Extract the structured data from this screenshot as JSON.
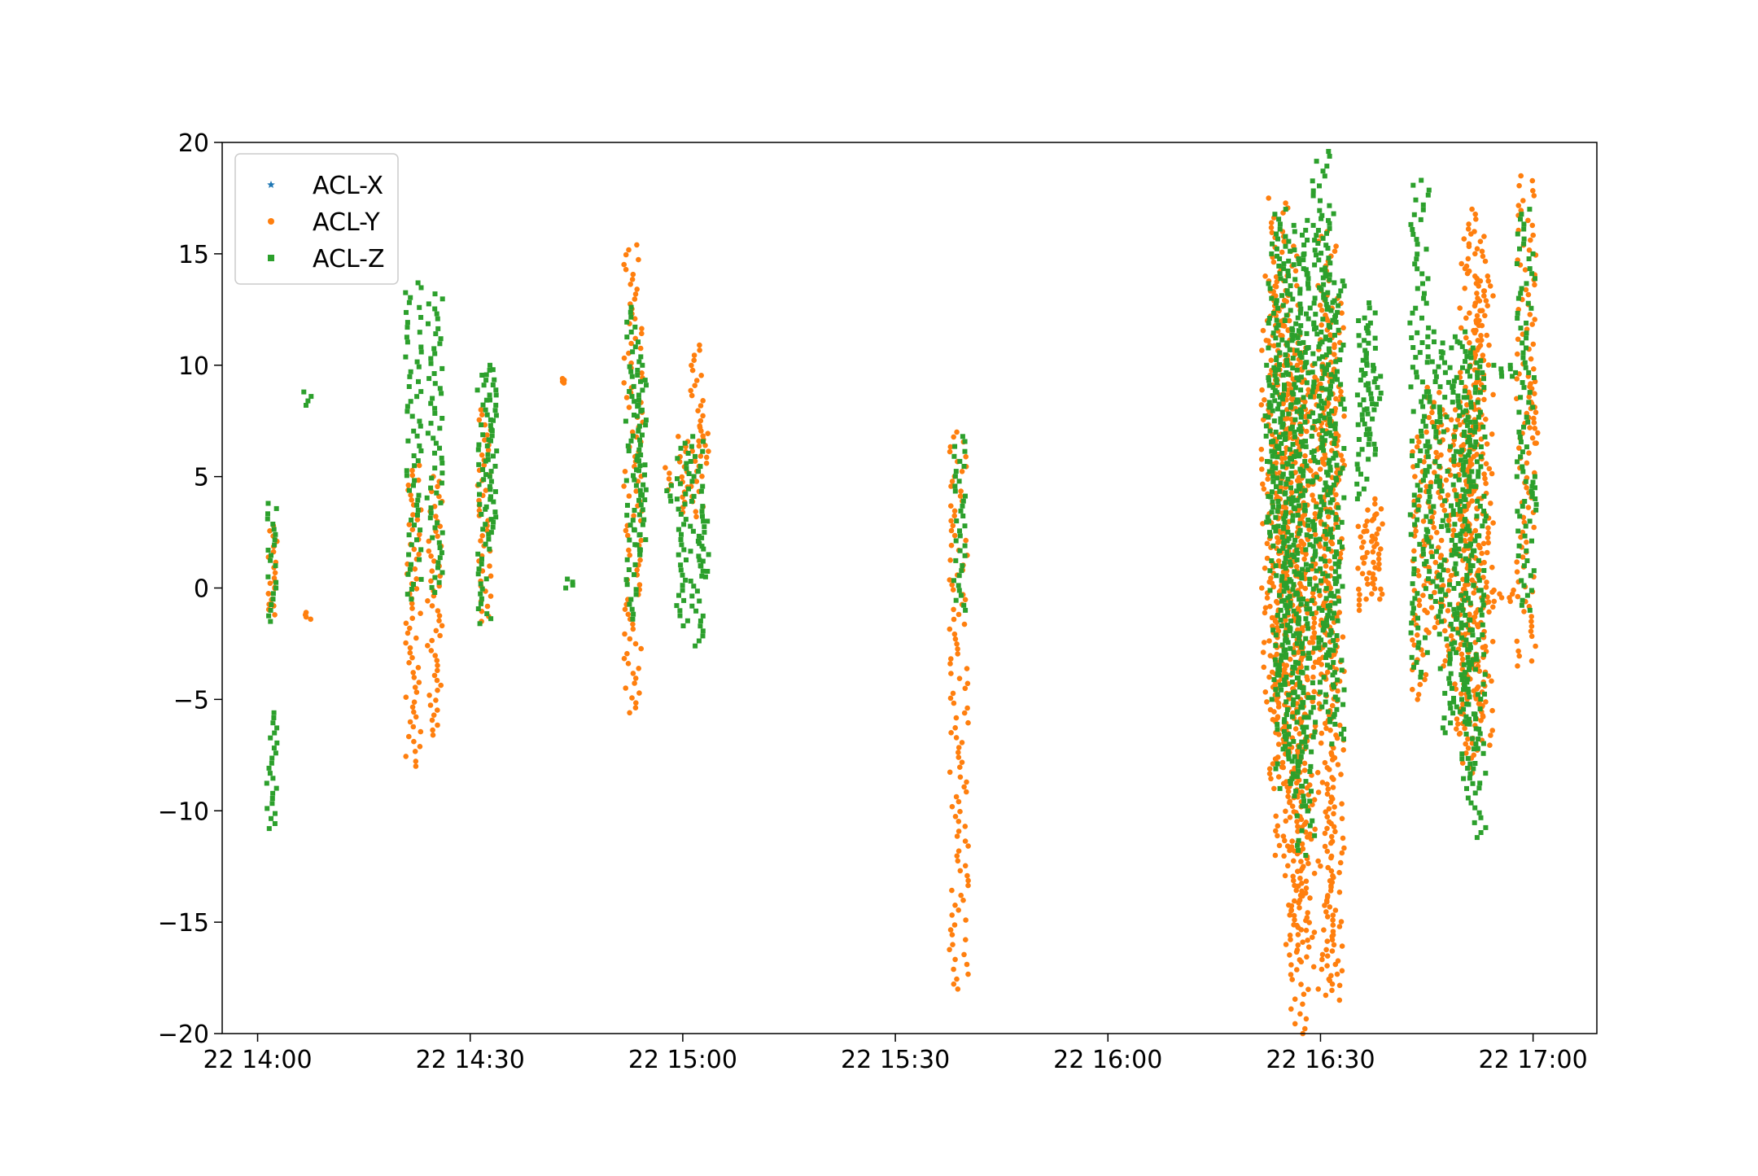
{
  "chart_data": {
    "type": "scatter",
    "title": "",
    "xlabel": "",
    "ylabel": "",
    "ylim": [
      -20,
      20
    ],
    "xlim": [
      "22 13:55",
      "22 17:09"
    ],
    "x_ticks": [
      "22 14:00",
      "22 14:30",
      "22 15:00",
      "22 15:30",
      "22 16:00",
      "22 16:30",
      "22 17:00"
    ],
    "y_ticks": [
      -20,
      -15,
      -10,
      -5,
      0,
      5,
      10,
      15,
      20
    ],
    "y_tick_labels": [
      "−20",
      "−15",
      "−10",
      "−5",
      "0",
      "5",
      "10",
      "15",
      "20"
    ],
    "grid": false,
    "legend_position": "top-left",
    "series": [
      {
        "name": "ACL-X",
        "marker": "star",
        "color": "#1f77b4",
        "points": []
      },
      {
        "name": "ACL-Y",
        "marker": "circle",
        "color": "#ff7f0e",
        "segments": [
          [
            "22 14:02",
            -1.2,
            2.8
          ],
          [
            "22 14:02",
            -0.8,
            0.3
          ],
          [
            "22 14:07",
            -1.4,
            -1.1
          ],
          [
            "22 14:22",
            -8.0,
            5.5
          ],
          [
            "22 14:25",
            -6.6,
            5.0
          ],
          [
            "22 14:32",
            -1.5,
            8.0
          ],
          [
            "22 14:43",
            9.2,
            9.4
          ],
          [
            "22 14:53",
            -5.6,
            15.4
          ],
          [
            "22 14:58",
            4.4,
            5.4
          ],
          [
            "22 15:00",
            3.4,
            6.8
          ],
          [
            "22 15:02",
            3.2,
            10.9
          ],
          [
            "22 15:03",
            5.6,
            7.2
          ],
          [
            "22 15:39",
            -18.0,
            7.0
          ],
          [
            "22 16:23",
            -6.0,
            14.0
          ],
          [
            "22 16:24",
            -9.0,
            17.5
          ],
          [
            "22 16:25",
            -12.0,
            12.0
          ],
          [
            "22 16:26",
            -16.0,
            16.0
          ],
          [
            "22 16:27",
            -20.0,
            10.0
          ],
          [
            "22 16:28",
            -17.0,
            11.0
          ],
          [
            "22 16:30",
            -4.0,
            10.0
          ],
          [
            "22 16:31",
            -18.0,
            16.0
          ],
          [
            "22 16:32",
            -18.5,
            13.0
          ],
          [
            "22 16:36",
            -1.0,
            3.0
          ],
          [
            "22 16:37",
            -0.5,
            3.5
          ],
          [
            "22 16:38",
            -0.5,
            4.0
          ],
          [
            "22 16:44",
            -5.0,
            7.0
          ],
          [
            "22 16:46",
            -2.0,
            9.0
          ],
          [
            "22 16:48",
            -3.5,
            8.0
          ],
          [
            "22 16:50",
            -7.0,
            8.0
          ],
          [
            "22 16:51",
            -8.3,
            17.0
          ],
          [
            "22 16:52",
            -6.0,
            16.0
          ],
          [
            "22 16:53",
            -7.5,
            14.0
          ],
          [
            "22 16:55",
            -0.6,
            -0.1
          ],
          [
            "22 16:57",
            -0.6,
            -0.1
          ],
          [
            "22 16:59",
            -3.5,
            18.5
          ],
          [
            "22 17:00",
            6.5,
            9.5
          ]
        ]
      },
      {
        "name": "ACL-Z",
        "marker": "square",
        "color": "#2ca02c",
        "segments": [
          [
            "22 14:02",
            -1.5,
            0.5
          ],
          [
            "22 14:02",
            1.0,
            3.8
          ],
          [
            "22 14:02",
            -10.8,
            -5.6
          ],
          [
            "22 14:07",
            8.2,
            8.8
          ],
          [
            "22 14:22",
            -0.5,
            13.7
          ],
          [
            "22 14:25",
            -0.2,
            13.2
          ],
          [
            "22 14:32",
            -1.6,
            10.0
          ],
          [
            "22 14:33",
            2.5,
            9.8
          ],
          [
            "22 14:44",
            0.0,
            0.4
          ],
          [
            "22 14:53",
            -1.4,
            12.6
          ],
          [
            "22 14:54",
            1.5,
            10.0
          ],
          [
            "22 14:58",
            3.9,
            4.6
          ],
          [
            "22 15:00",
            -1.7,
            6.5
          ],
          [
            "22 15:02",
            -2.6,
            6.8
          ],
          [
            "22 15:03",
            0.5,
            3.0
          ],
          [
            "22 15:39",
            -1.0,
            6.8
          ],
          [
            "22 16:23",
            2.5,
            10.0
          ],
          [
            "22 16:24",
            -5.0,
            17.0
          ],
          [
            "22 16:25",
            -9.0,
            16.0
          ],
          [
            "22 16:26",
            -8.0,
            12.0
          ],
          [
            "22 16:27",
            -10.0,
            16.5
          ],
          [
            "22 16:28",
            -12.0,
            15.0
          ],
          [
            "22 16:30",
            -3.0,
            19.6
          ],
          [
            "22 16:31",
            -6.0,
            16.8
          ],
          [
            "22 16:32",
            -7.0,
            14.0
          ],
          [
            "22 16:36",
            4.0,
            12.0
          ],
          [
            "22 16:37",
            6.0,
            12.8
          ],
          [
            "22 16:38",
            8.0,
            10.0
          ],
          [
            "22 16:44",
            -4.0,
            18.3
          ],
          [
            "22 16:46",
            -1.5,
            11.5
          ],
          [
            "22 16:48",
            -6.5,
            11.0
          ],
          [
            "22 16:50",
            -6.0,
            11.5
          ],
          [
            "22 16:51",
            -9.0,
            11.0
          ],
          [
            "22 16:52",
            -11.2,
            9.0
          ],
          [
            "22 16:53",
            9.4,
            10.2
          ],
          [
            "22 16:55",
            9.5,
            10.0
          ],
          [
            "22 16:57",
            9.5,
            10.0
          ],
          [
            "22 16:59",
            -1.0,
            17.0
          ],
          [
            "22 17:00",
            3.5,
            5.0
          ]
        ]
      }
    ]
  }
}
